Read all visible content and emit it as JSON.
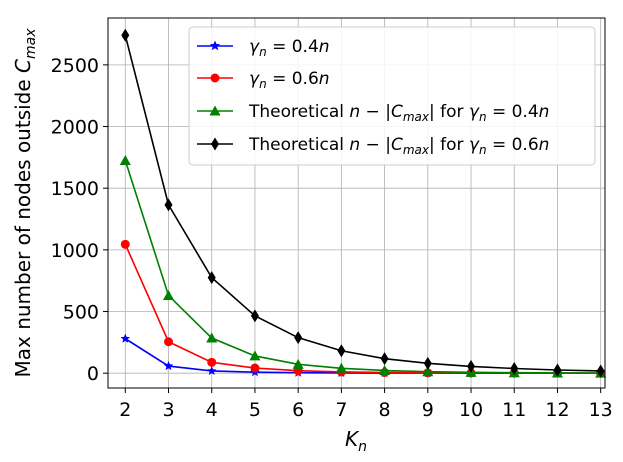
{
  "chart_data": {
    "type": "line",
    "title": "",
    "xlabel": "K_n",
    "ylabel": "Max number of nodes outside C_max",
    "xlim": [
      1.6,
      13.1
    ],
    "ylim": [
      -120,
      2880
    ],
    "grid": true,
    "legend_position": "top-right",
    "x": [
      2,
      3,
      4,
      5,
      6,
      7,
      8,
      9,
      10,
      11,
      12,
      13
    ],
    "xticks": [
      "2",
      "3",
      "4",
      "5",
      "6",
      "7",
      "8",
      "9",
      "10",
      "11",
      "12",
      "13"
    ],
    "yticks": [
      0,
      500,
      1000,
      1500,
      2000,
      2500
    ],
    "ytick_labels": [
      "0",
      "500",
      "1000",
      "1500",
      "2000",
      "2500"
    ],
    "series": [
      {
        "name": "γn = 0.4n",
        "legend_label": {
          "prefix": "",
          "var": "γ",
          "sub": "n",
          "rest": " = 0.4",
          "suffix_var": "n",
          "pre": ""
        },
        "color": "#0000ff",
        "marker": "star",
        "values": [
          280,
          58,
          18,
          8,
          4,
          2,
          1,
          1,
          0,
          0,
          0,
          0
        ]
      },
      {
        "name": "γn = 0.6n",
        "legend_label": {
          "prefix": "",
          "var": "γ",
          "sub": "n",
          "rest": " = 0.6",
          "suffix_var": "n",
          "pre": ""
        },
        "color": "#ff0000",
        "marker": "circle",
        "values": [
          1045,
          255,
          88,
          42,
          20,
          10,
          6,
          3,
          2,
          1,
          1,
          0
        ]
      },
      {
        "name": "Theoretical n − |Cmax| for γn = 0.4n",
        "color": "#008000",
        "marker": "triangle",
        "values": [
          1725,
          630,
          285,
          140,
          72,
          40,
          22,
          12,
          7,
          4,
          2,
          1
        ]
      },
      {
        "name": "Theoretical n − |Cmax| for γn = 0.6n",
        "color": "#000000",
        "marker": "diamond",
        "values": [
          2740,
          1365,
          775,
          465,
          288,
          182,
          118,
          80,
          55,
          38,
          26,
          18
        ]
      }
    ]
  }
}
